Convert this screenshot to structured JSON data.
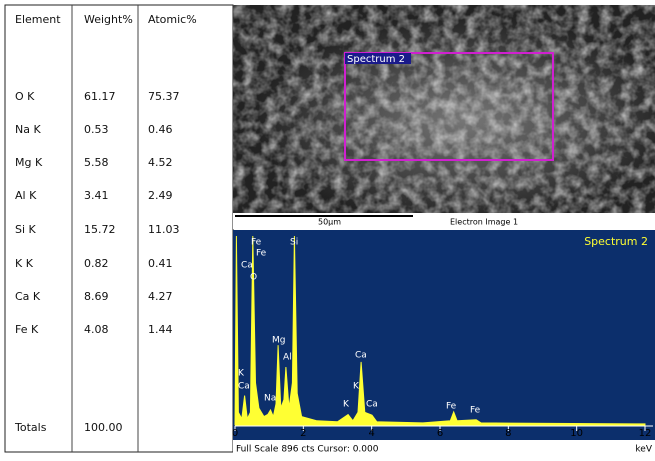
{
  "table": {
    "headers": [
      "Element",
      "Weight%",
      "Atomic%"
    ],
    "rows": [
      [
        "O K",
        "61.17",
        "75.37"
      ],
      [
        "Na K",
        "0.53",
        "0.46"
      ],
      [
        "Mg K",
        "5.58",
        "4.52"
      ],
      [
        "Al K",
        "3.41",
        "2.49"
      ],
      [
        "Si K",
        "15.72",
        "11.03"
      ],
      [
        "K K",
        "0.82",
        "0.41"
      ],
      [
        "Ca K",
        "8.69",
        "4.27"
      ],
      [
        "Fe K",
        "4.08",
        "1.44"
      ]
    ],
    "totals": [
      "Totals",
      "100.00"
    ]
  },
  "image": {
    "region_label": "Spectrum 2",
    "scale_label": "50µm",
    "caption": "Electron Image 1"
  },
  "chart_data": {
    "type": "area",
    "title": "Spectrum 2",
    "color": "#ffff33",
    "x": [
      0,
      0.04,
      0.1,
      0.2,
      0.28,
      0.36,
      0.45,
      0.52,
      0.6,
      0.7,
      0.85,
      0.96,
      1.04,
      1.12,
      1.2,
      1.26,
      1.34,
      1.43,
      1.49,
      1.58,
      1.68,
      1.74,
      1.82,
      1.95,
      2.4,
      3.0,
      3.31,
      3.45,
      3.6,
      3.69,
      3.8,
      4.01,
      4.15,
      5.5,
      6.3,
      6.4,
      6.5,
      7.06,
      7.2,
      12
    ],
    "values": [
      0,
      896,
      60,
      30,
      140,
      30,
      60,
      896,
      200,
      80,
      40,
      50,
      71,
      40,
      100,
      379,
      80,
      120,
      275,
      80,
      200,
      896,
      150,
      40,
      20,
      15,
      50,
      20,
      60,
      299,
      60,
      47,
      15,
      10,
      20,
      62,
      20,
      25,
      10,
      5
    ],
    "xlim": [
      0,
      12.3
    ],
    "ylim": [
      0,
      896
    ],
    "xticks": [
      0,
      2,
      4,
      6,
      8,
      10,
      12
    ],
    "x_unit": "keV",
    "footer": "Full Scale 896 cts Cursor: 0.000",
    "annotations": [
      "Fe",
      "Ca",
      "Fe",
      "O",
      "Si",
      "Mg",
      "Al",
      "Ca",
      "K",
      "Ca",
      "Na",
      "K",
      "K",
      "Ca",
      "Fe",
      "Fe"
    ]
  }
}
